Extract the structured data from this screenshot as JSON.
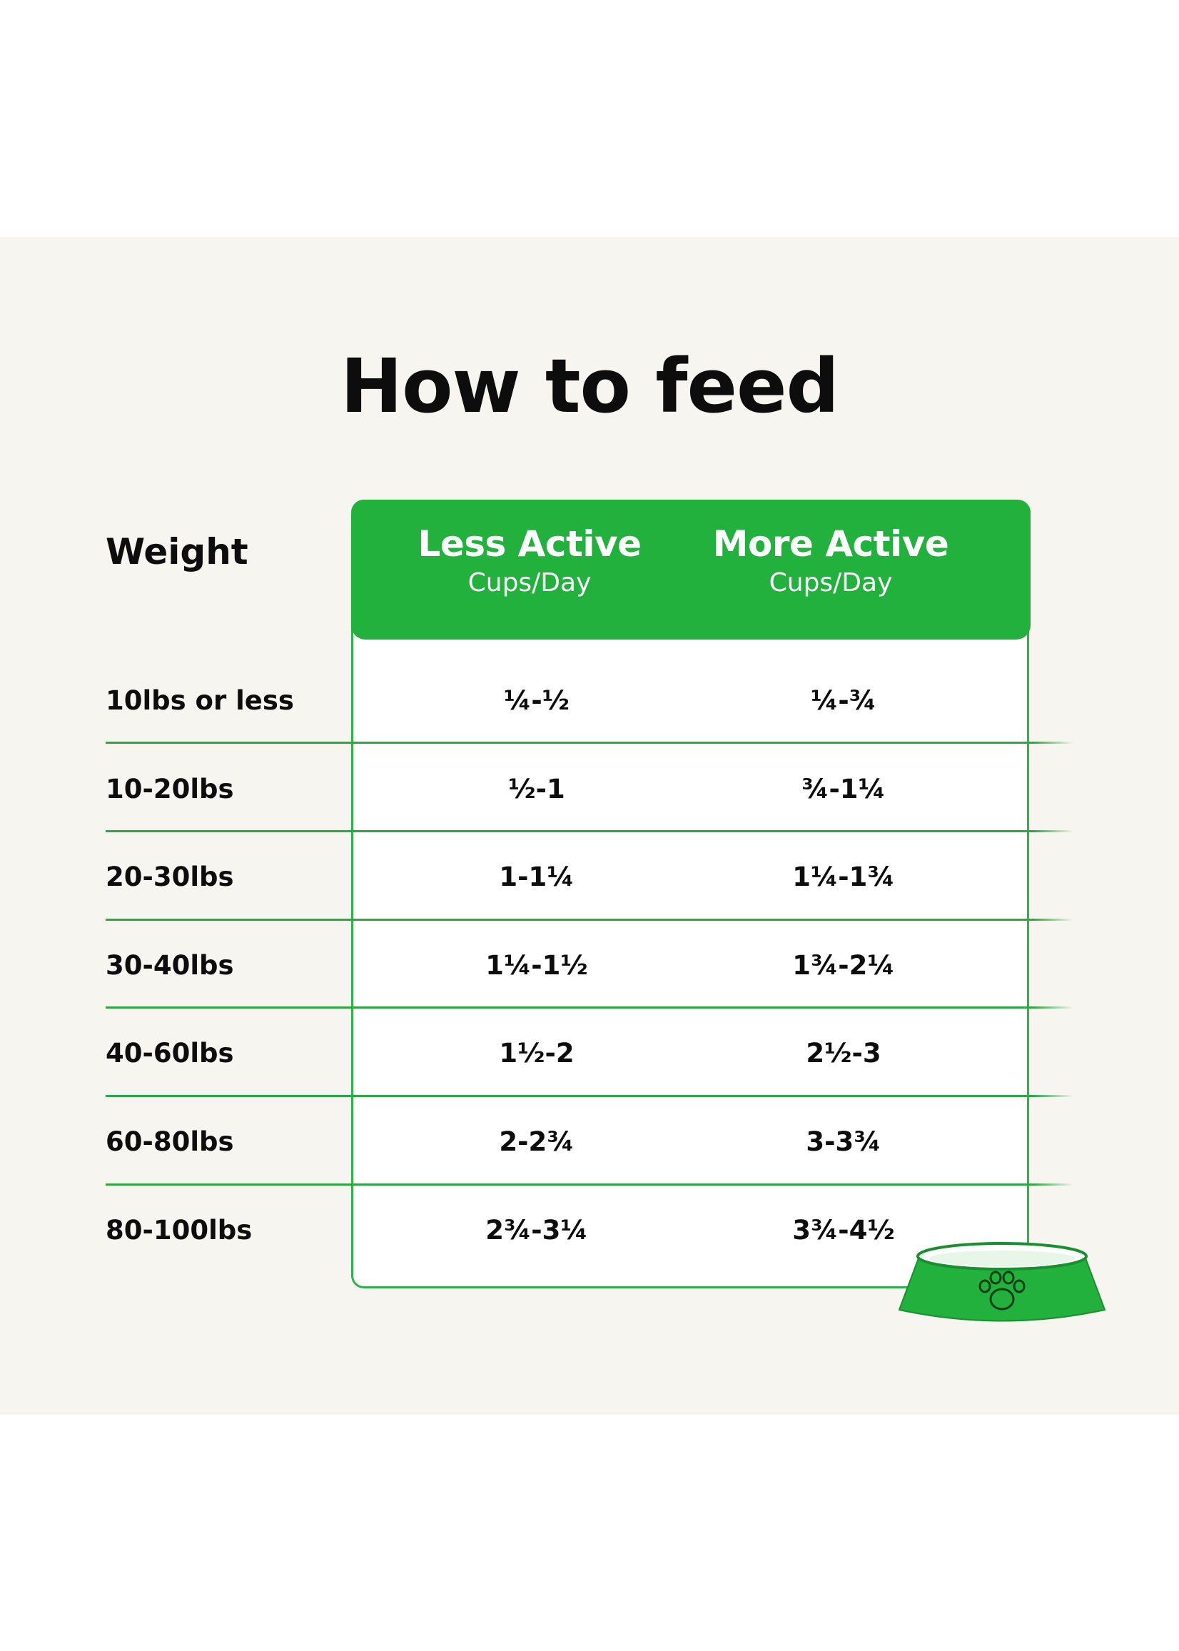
{
  "title": "How to feed",
  "table": {
    "weight_header": "Weight",
    "columns": [
      {
        "label": "Less Active",
        "unit": "Cups/Day"
      },
      {
        "label": "More Active",
        "unit": "Cups/Day"
      }
    ],
    "rows": [
      {
        "weight": "10lbs or less",
        "less": "¼-½",
        "more": "¼-¾"
      },
      {
        "weight": "10-20lbs",
        "less": "½-1",
        "more": "¾-1¼"
      },
      {
        "weight": "20-30lbs",
        "less": "1-1¼",
        "more": "1¼-1¾"
      },
      {
        "weight": "30-40lbs",
        "less": "1¼-1½",
        "more": "1¾-2¼"
      },
      {
        "weight": "40-60lbs",
        "less": "1½-2",
        "more": "2½-3"
      },
      {
        "weight": "60-80lbs",
        "less": "2-2¾",
        "more": "3-3¾"
      },
      {
        "weight": "80-100lbs",
        "less": "2¾-3¼",
        "more": "3¾-4½"
      }
    ]
  },
  "colors": {
    "accent_green": "#21b13c",
    "panel_bg": "#f7f5ef"
  },
  "icons": {
    "bowl": "dog-bowl-paw-icon"
  }
}
